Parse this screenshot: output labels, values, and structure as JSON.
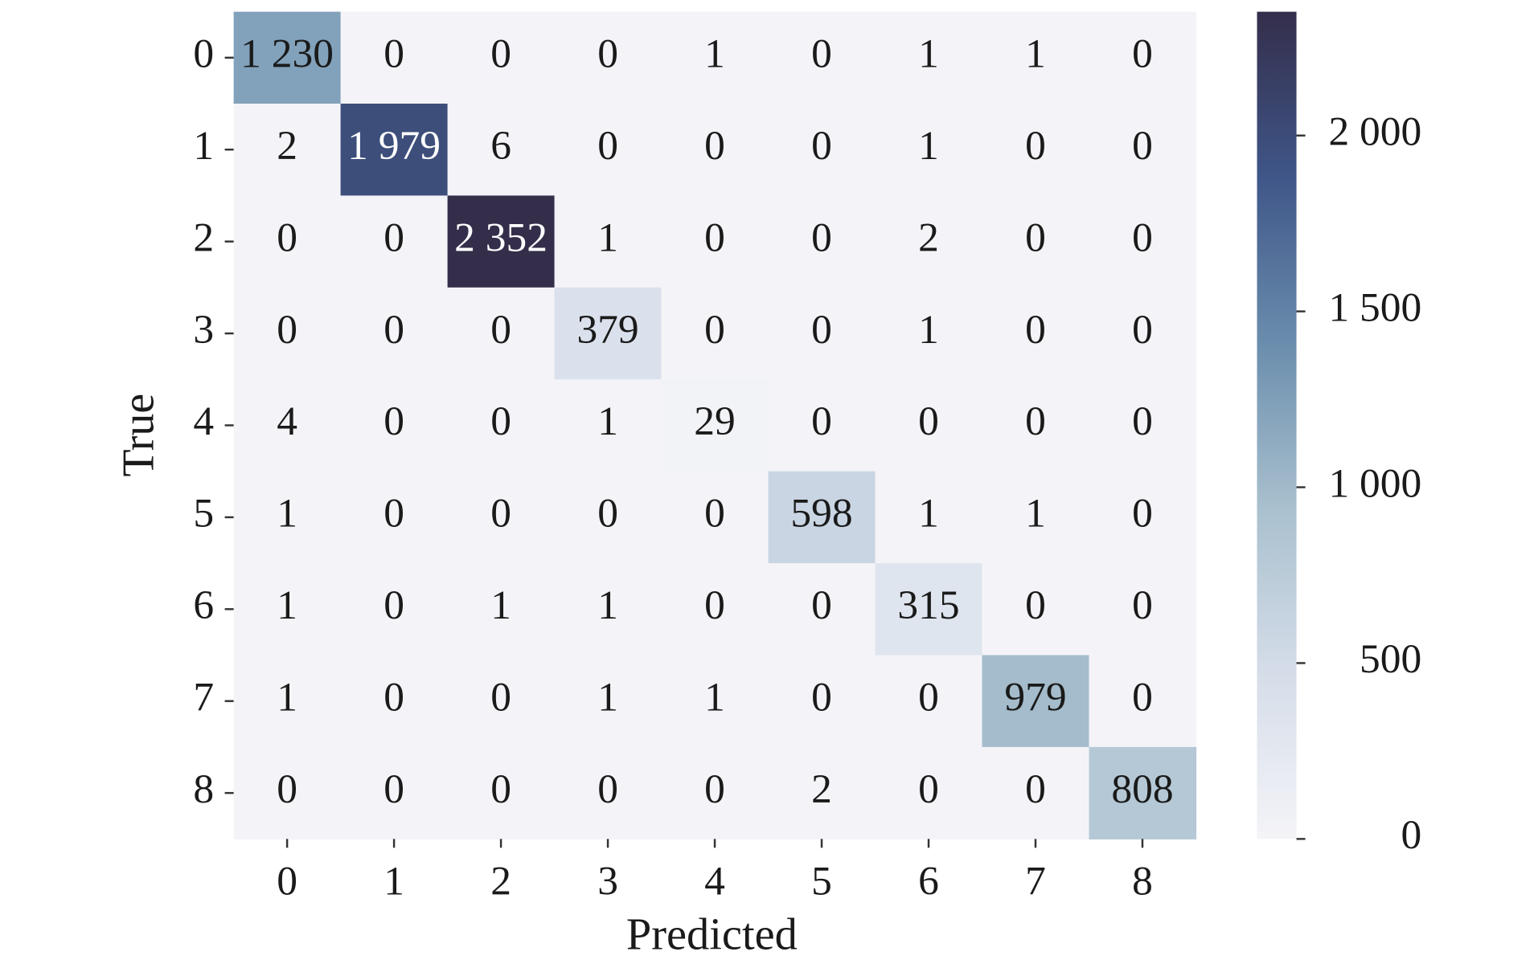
{
  "chart_data": {
    "type": "heatmap",
    "x_label": "Predicted",
    "y_label": "True",
    "x_categories": [
      "0",
      "1",
      "2",
      "3",
      "4",
      "5",
      "6",
      "7",
      "8"
    ],
    "y_categories": [
      "0",
      "1",
      "2",
      "3",
      "4",
      "5",
      "6",
      "7",
      "8"
    ],
    "z": [
      [
        1230,
        0,
        0,
        0,
        1,
        0,
        1,
        1,
        0
      ],
      [
        2,
        1979,
        6,
        0,
        0,
        0,
        1,
        0,
        0
      ],
      [
        0,
        0,
        2352,
        1,
        0,
        0,
        2,
        0,
        0
      ],
      [
        0,
        0,
        0,
        379,
        0,
        0,
        1,
        0,
        0
      ],
      [
        4,
        0,
        0,
        1,
        29,
        0,
        0,
        0,
        0
      ],
      [
        1,
        0,
        0,
        0,
        0,
        598,
        1,
        1,
        0
      ],
      [
        1,
        0,
        1,
        1,
        0,
        0,
        315,
        0,
        0
      ],
      [
        1,
        0,
        0,
        1,
        1,
        0,
        0,
        979,
        0
      ],
      [
        0,
        0,
        0,
        0,
        0,
        2,
        0,
        0,
        808
      ]
    ],
    "value_labels": [
      [
        "1 230",
        "0",
        "0",
        "0",
        "1",
        "0",
        "1",
        "1",
        "0"
      ],
      [
        "2",
        "1 979",
        "6",
        "0",
        "0",
        "0",
        "1",
        "0",
        "0"
      ],
      [
        "0",
        "0",
        "2 352",
        "1",
        "0",
        "0",
        "2",
        "0",
        "0"
      ],
      [
        "0",
        "0",
        "0",
        "379",
        "0",
        "0",
        "1",
        "0",
        "0"
      ],
      [
        "4",
        "0",
        "0",
        "1",
        "29",
        "0",
        "0",
        "0",
        "0"
      ],
      [
        "1",
        "0",
        "0",
        "0",
        "0",
        "598",
        "1",
        "1",
        "0"
      ],
      [
        "1",
        "0",
        "1",
        "1",
        "0",
        "0",
        "315",
        "0",
        "0"
      ],
      [
        "1",
        "0",
        "0",
        "1",
        "1",
        "0",
        "0",
        "979",
        "0"
      ],
      [
        "0",
        "0",
        "0",
        "0",
        "0",
        "2",
        "0",
        "0",
        "808"
      ]
    ],
    "colormap": [
      "#f4f4f8",
      "#d5dde9",
      "#a9c0ce",
      "#6a8dad",
      "#3f5688",
      "#342e4b"
    ],
    "clim": [
      0,
      2352
    ],
    "cticks": [
      0,
      500,
      {
        "value": 1000,
        "label": "1 000"
      },
      {
        "value": 1500,
        "label": "1 500"
      },
      {
        "value": 2000,
        "label": "2 000"
      }
    ]
  }
}
